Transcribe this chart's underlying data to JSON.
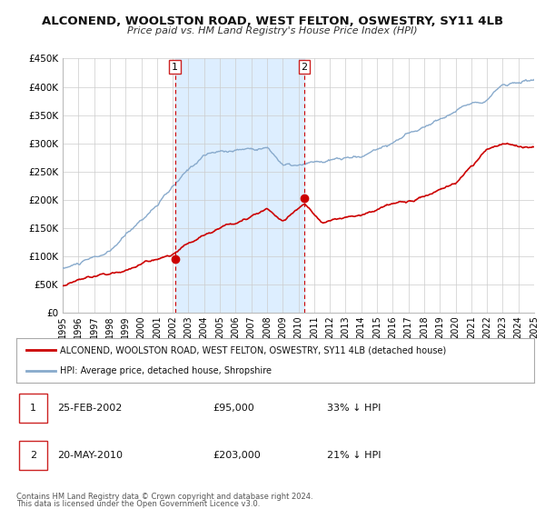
{
  "title": "ALCONEND, WOOLSTON ROAD, WEST FELTON, OSWESTRY, SY11 4LB",
  "subtitle": "Price paid vs. HM Land Registry's House Price Index (HPI)",
  "legend_line1": "ALCONEND, WOOLSTON ROAD, WEST FELTON, OSWESTRY, SY11 4LB (detached house)",
  "legend_line2": "HPI: Average price, detached house, Shropshire",
  "marker1_date": "25-FEB-2002",
  "marker1_price": 95000,
  "marker1_label": "33% ↓ HPI",
  "marker1_x": 2002.15,
  "marker2_date": "20-MAY-2010",
  "marker2_price": 203000,
  "marker2_label": "21% ↓ HPI",
  "marker2_x": 2010.38,
  "footer_line1": "Contains HM Land Registry data © Crown copyright and database right 2024.",
  "footer_line2": "This data is licensed under the Open Government Licence v3.0.",
  "red_color": "#cc0000",
  "blue_color": "#88aacc",
  "shade_color": "#ddeeff",
  "background_color": "#ffffff",
  "grid_color": "#cccccc",
  "ylim": [
    0,
    450000
  ],
  "xlim": [
    1995,
    2025
  ],
  "yticks": [
    0,
    50000,
    100000,
    150000,
    200000,
    250000,
    300000,
    350000,
    400000,
    450000
  ],
  "ytick_labels": [
    "£0",
    "£50K",
    "£100K",
    "£150K",
    "£200K",
    "£250K",
    "£300K",
    "£350K",
    "£400K",
    "£450K"
  ]
}
